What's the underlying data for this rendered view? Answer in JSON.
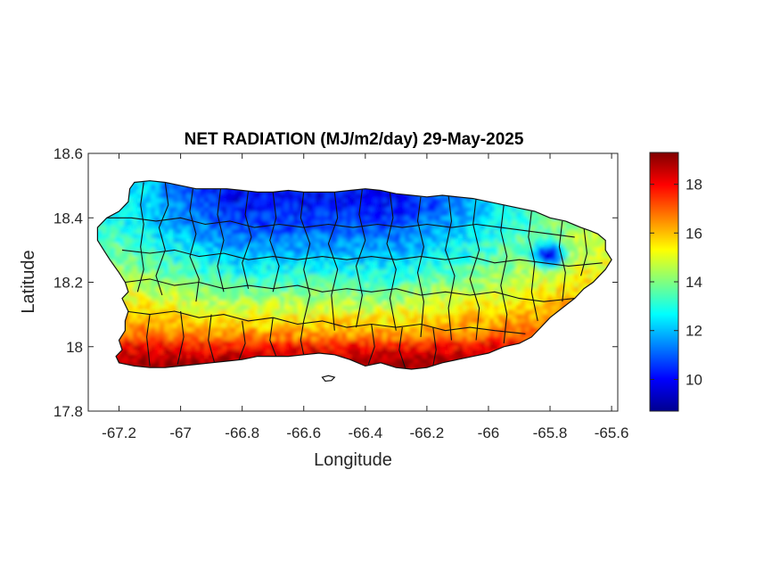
{
  "chart_data": {
    "type": "heatmap",
    "title": "NET RADIATION (MJ/m2/day) 29-May-2025",
    "xlabel": "Longitude",
    "ylabel": "Latitude",
    "xlim": [
      -67.3,
      -65.58
    ],
    "ylim": [
      17.8,
      18.6
    ],
    "xticks": [
      -67.2,
      -67,
      -66.8,
      -66.6,
      -66.4,
      -66.2,
      -66,
      -65.8,
      -65.6
    ],
    "yticks": [
      17.8,
      18,
      18.2,
      18.4,
      18.6
    ],
    "xtick_labels": [
      "-67.2",
      "-67",
      "-66.8",
      "-66.6",
      "-66.4",
      "-66.2",
      "-66",
      "-65.8",
      "-65.6"
    ],
    "ytick_labels": [
      "17.8",
      "18",
      "18.2",
      "18.4",
      "18.6"
    ],
    "colorbar": {
      "colormap": "jet",
      "clim": [
        8.7,
        19.3
      ],
      "ticks": [
        10,
        12,
        14,
        16,
        18
      ],
      "tick_labels": [
        "10",
        "12",
        "14",
        "16",
        "18"
      ]
    },
    "field_summary": {
      "north_central_interior": 10,
      "northwest_coast": 13,
      "northeast": 15,
      "central_south": 15.5,
      "south_coast": 18.5,
      "san_juan_area_minimum": 9.5
    },
    "grid": false,
    "legend": "none",
    "overlay": "municipality boundaries of Puerto Rico"
  }
}
